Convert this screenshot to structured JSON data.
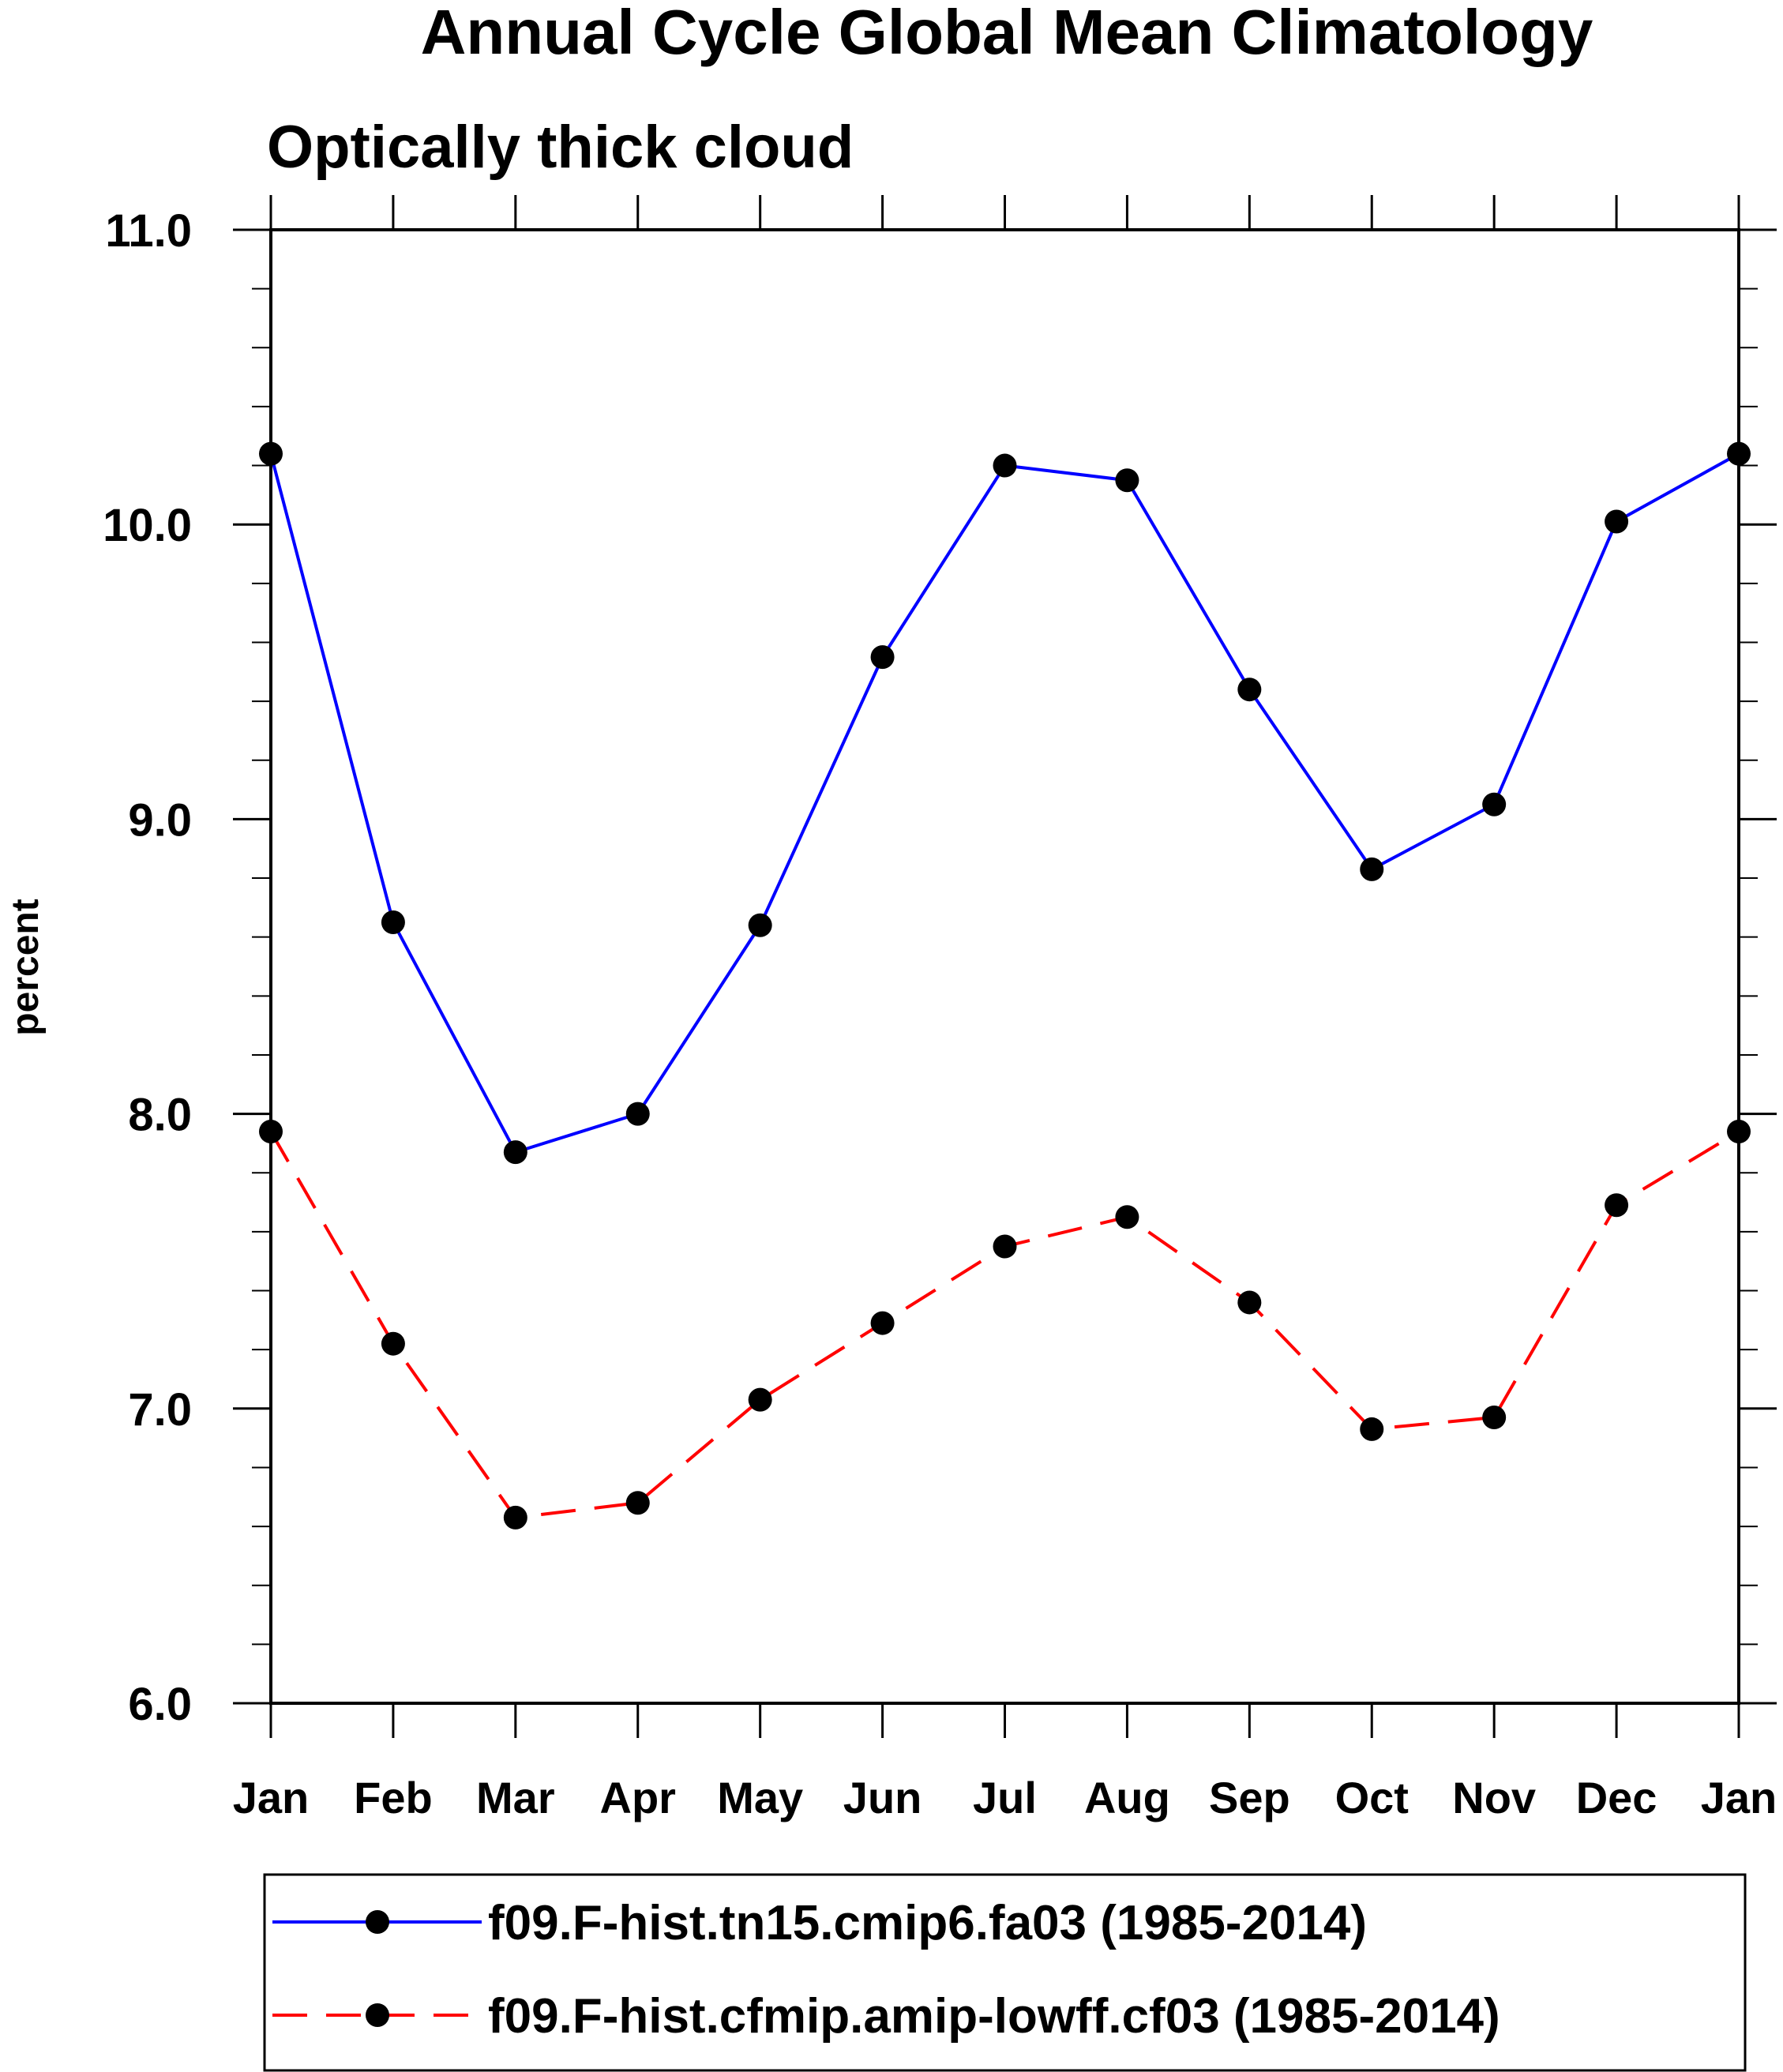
{
  "chart_data": {
    "type": "line",
    "title": "Annual Cycle Global Mean Climatology",
    "subtitle": "Optically thick cloud",
    "xlabel": "",
    "ylabel": "percent",
    "categories": [
      "Jan",
      "Feb",
      "Mar",
      "Apr",
      "May",
      "Jun",
      "Jul",
      "Aug",
      "Sep",
      "Oct",
      "Nov",
      "Dec",
      "Jan"
    ],
    "yticks": [
      "6.0",
      "7.0",
      "8.0",
      "9.0",
      "10.0",
      "11.0"
    ],
    "ylim": [
      6.0,
      11.0
    ],
    "grid": false,
    "legend_position": "bottom",
    "series": [
      {
        "name": "f09.F-hist.tn15.cmip6.fa03 (1985-2014)",
        "color": "#0000ff",
        "dash": "solid",
        "marker": "filled-circle",
        "values": [
          10.24,
          8.65,
          7.87,
          8.0,
          8.64,
          9.55,
          10.2,
          10.15,
          9.44,
          8.83,
          9.05,
          10.01,
          10.24
        ]
      },
      {
        "name": "f09.F-hist.cfmip.amip-lowff.cf03 (1985-2014)",
        "color": "#ff0000",
        "dash": "dashed",
        "marker": "filled-circle",
        "values": [
          7.94,
          7.22,
          6.63,
          6.68,
          7.03,
          7.29,
          7.55,
          7.65,
          7.36,
          6.93,
          6.97,
          7.69,
          7.94
        ]
      }
    ]
  }
}
